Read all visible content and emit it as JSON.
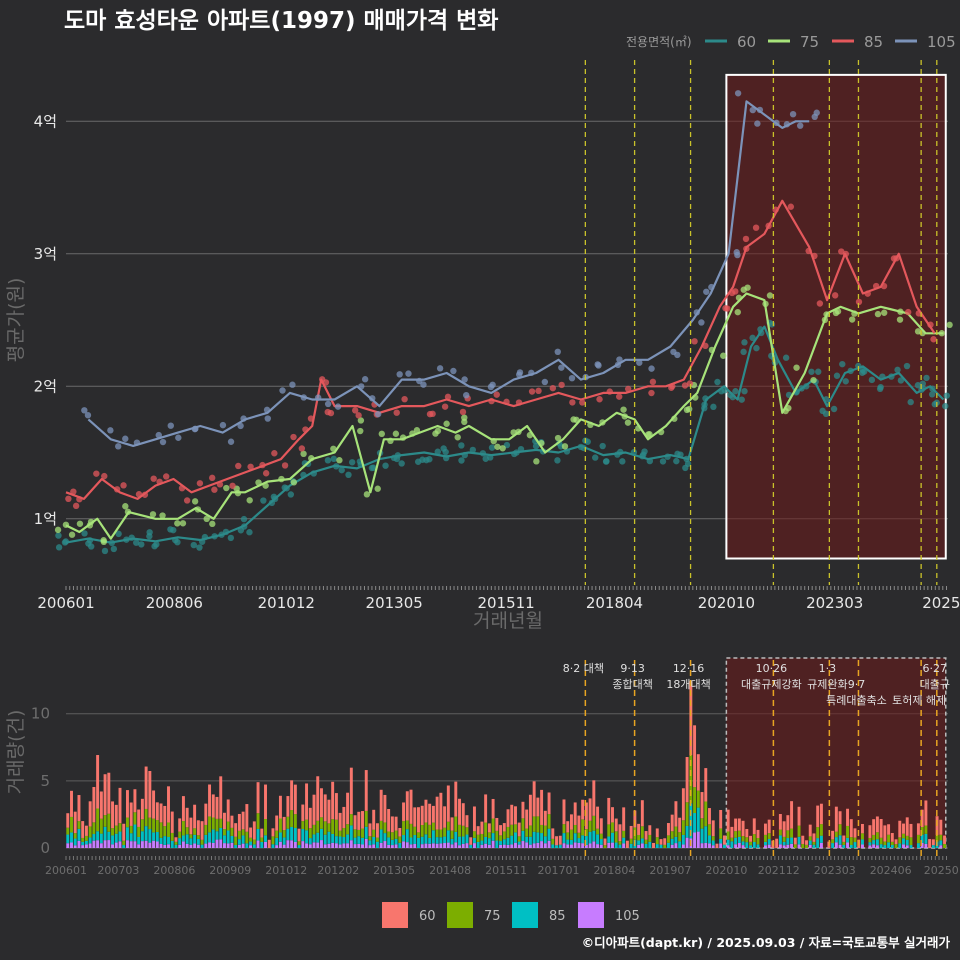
{
  "title": "도마 효성타운 아파트(1997) 매매가격 변화",
  "legend": {
    "title": "전용면적(㎡)",
    "items": [
      {
        "label": "60",
        "color": "#2c8a8a"
      },
      {
        "label": "75",
        "color": "#a7e37a"
      },
      {
        "label": "85",
        "color": "#e4585c"
      },
      {
        "label": "105",
        "color": "#7c93b9"
      }
    ]
  },
  "bar_legend": {
    "items": [
      {
        "label": "60",
        "color": "#f8766d"
      },
      {
        "label": "75",
        "color": "#7cae00"
      },
      {
        "label": "85",
        "color": "#00bfc4"
      },
      {
        "label": "105",
        "color": "#c77cff"
      }
    ]
  },
  "credit": "©디아파트(dapt.kr) / 2025.09.03 / 자료=국토교통부 실거래가",
  "chart_data": [
    {
      "type": "line",
      "ylabel": "평균가(원)",
      "xlabel": "거래년월",
      "yticks": [
        {
          "v": 1,
          "label": "1억"
        },
        {
          "v": 2,
          "label": "2억"
        },
        {
          "v": 3,
          "label": "3억"
        },
        {
          "v": 4,
          "label": "4억"
        }
      ],
      "ylim": [
        0.5,
        4.5
      ],
      "xlim": [
        2006.0,
        2025.7
      ],
      "xticks": [
        {
          "v": 2006.0,
          "label": "200601"
        },
        {
          "v": 2008.42,
          "label": "200806"
        },
        {
          "v": 2010.92,
          "label": "201012"
        },
        {
          "v": 2013.33,
          "label": "201305"
        },
        {
          "v": 2015.83,
          "label": "201511"
        },
        {
          "v": 2018.25,
          "label": "201804"
        },
        {
          "v": 2020.75,
          "label": "202010"
        },
        {
          "v": 2023.17,
          "label": "202303"
        },
        {
          "v": 2025.55,
          "label": "2025"
        }
      ],
      "policy_lines": [
        2017.6,
        2018.7,
        2019.95,
        2021.8,
        2023.05,
        2023.7,
        2025.1,
        2025.45
      ],
      "highlight_box": {
        "x0": 2020.75,
        "x1": 2025.65,
        "y0": 0.7,
        "y1": 4.35
      },
      "series": [
        {
          "name": "60",
          "color": "#2c8a8a",
          "x": [
            2006.0,
            2006.5,
            2007.0,
            2007.5,
            2008.0,
            2008.5,
            2009.0,
            2009.5,
            2010.0,
            2010.5,
            2011.0,
            2011.5,
            2012.0,
            2012.5,
            2013.0,
            2013.5,
            2014.0,
            2014.5,
            2015.0,
            2015.5,
            2016.0,
            2016.5,
            2017.0,
            2017.5,
            2018.0,
            2018.5,
            2019.0,
            2019.5,
            2019.9,
            2020.3,
            2020.7,
            2021.0,
            2021.3,
            2021.6,
            2021.9,
            2022.3,
            2022.7,
            2023.0,
            2023.4,
            2023.8,
            2024.2,
            2024.6,
            2025.0,
            2025.3,
            2025.6
          ],
          "y": [
            0.82,
            0.85,
            0.82,
            0.85,
            0.83,
            0.86,
            0.84,
            0.88,
            0.95,
            1.1,
            1.25,
            1.35,
            1.4,
            1.38,
            1.45,
            1.48,
            1.5,
            1.47,
            1.5,
            1.48,
            1.5,
            1.52,
            1.5,
            1.55,
            1.48,
            1.5,
            1.45,
            1.48,
            1.45,
            1.9,
            2.0,
            1.9,
            2.3,
            2.45,
            2.2,
            1.95,
            2.05,
            1.85,
            2.1,
            2.15,
            2.05,
            2.1,
            1.95,
            2.0,
            1.9
          ]
        },
        {
          "name": "75",
          "color": "#a7e37a",
          "x": [
            2006.0,
            2006.3,
            2006.7,
            2007.0,
            2007.4,
            2008.0,
            2008.5,
            2008.9,
            2009.3,
            2009.7,
            2010.0,
            2010.5,
            2011.0,
            2011.5,
            2012.0,
            2012.4,
            2012.8,
            2013.1,
            2013.5,
            2013.9,
            2014.3,
            2014.7,
            2015.0,
            2015.5,
            2015.9,
            2016.3,
            2016.7,
            2017.1,
            2017.5,
            2017.9,
            2018.3,
            2018.7,
            2019.0,
            2019.4,
            2019.8,
            2020.1,
            2020.5,
            2020.9,
            2021.2,
            2021.6,
            2022.0,
            2022.5,
            2023.0,
            2023.3,
            2023.7,
            2024.2,
            2024.8,
            2025.2,
            2025.6
          ],
          "y": [
            0.95,
            0.9,
            1.0,
            0.85,
            1.05,
            1.0,
            1.0,
            1.08,
            1.0,
            1.2,
            1.2,
            1.28,
            1.3,
            1.45,
            1.5,
            1.7,
            1.2,
            1.6,
            1.6,
            1.65,
            1.7,
            1.65,
            1.7,
            1.6,
            1.6,
            1.7,
            1.5,
            1.6,
            1.75,
            1.7,
            1.8,
            1.75,
            1.6,
            1.7,
            1.85,
            1.95,
            2.3,
            2.6,
            2.7,
            2.65,
            1.8,
            2.1,
            2.55,
            2.6,
            2.55,
            2.6,
            2.55,
            2.4,
            2.4
          ]
        },
        {
          "name": "85",
          "color": "#e4585c",
          "x": [
            2006.0,
            2006.4,
            2006.8,
            2007.2,
            2007.6,
            2008.0,
            2008.4,
            2008.8,
            2009.2,
            2009.6,
            2010.0,
            2010.4,
            2010.8,
            2011.2,
            2011.5,
            2011.7,
            2012.0,
            2012.5,
            2013.0,
            2013.5,
            2014.0,
            2014.5,
            2015.0,
            2015.5,
            2016.0,
            2016.5,
            2017.0,
            2017.5,
            2018.0,
            2018.5,
            2019.0,
            2019.4,
            2019.8,
            2020.2,
            2020.6,
            2020.9,
            2021.2,
            2021.6,
            2022.0,
            2022.6,
            2023.0,
            2023.4,
            2023.8,
            2024.2,
            2024.6,
            2025.0,
            2025.4
          ],
          "y": [
            1.2,
            1.15,
            1.3,
            1.2,
            1.15,
            1.25,
            1.3,
            1.2,
            1.25,
            1.3,
            1.35,
            1.4,
            1.45,
            1.6,
            1.7,
            2.05,
            1.85,
            1.85,
            1.8,
            1.85,
            1.85,
            1.9,
            1.85,
            1.9,
            1.85,
            1.9,
            1.95,
            1.9,
            1.95,
            1.95,
            2.0,
            2.0,
            2.05,
            2.3,
            2.6,
            2.75,
            3.05,
            3.15,
            3.4,
            3.05,
            2.65,
            3.0,
            2.7,
            2.75,
            3.0,
            2.6,
            2.4
          ]
        },
        {
          "name": "105",
          "color": "#7c93b9",
          "x": [
            2006.5,
            2007.0,
            2007.5,
            2008.0,
            2008.5,
            2009.0,
            2009.5,
            2010.0,
            2010.5,
            2011.0,
            2011.5,
            2012.0,
            2012.5,
            2013.0,
            2013.5,
            2014.0,
            2014.5,
            2015.0,
            2015.5,
            2016.0,
            2016.5,
            2017.0,
            2017.5,
            2018.0,
            2018.5,
            2019.0,
            2019.5,
            2020.0,
            2020.4,
            2020.8,
            2021.2,
            2021.6,
            2022.0,
            2022.3,
            2022.6
          ],
          "y": [
            1.75,
            1.6,
            1.55,
            1.6,
            1.65,
            1.7,
            1.65,
            1.75,
            1.8,
            1.95,
            1.9,
            1.9,
            2.0,
            1.85,
            2.05,
            2.05,
            2.1,
            2.0,
            1.95,
            2.05,
            2.1,
            2.2,
            2.05,
            2.1,
            2.2,
            2.2,
            2.3,
            2.5,
            2.7,
            3.0,
            4.15,
            4.05,
            3.95,
            4.0,
            4.0
          ]
        }
      ]
    },
    {
      "type": "bar",
      "ylabel": "거래량(건)",
      "yticks": [
        0,
        5,
        10
      ],
      "ylim": [
        0,
        14
      ],
      "xticks": [
        {
          "v": 2006.0,
          "label": "200601"
        },
        {
          "v": 2007.17,
          "label": "200703"
        },
        {
          "v": 2008.42,
          "label": "200806"
        },
        {
          "v": 2009.67,
          "label": "200909"
        },
        {
          "v": 2010.92,
          "label": "201012"
        },
        {
          "v": 2012.08,
          "label": "201202"
        },
        {
          "v": 2013.33,
          "label": "201305"
        },
        {
          "v": 2014.58,
          "label": "201408"
        },
        {
          "v": 2015.83,
          "label": "201511"
        },
        {
          "v": 2017.0,
          "label": "201701"
        },
        {
          "v": 2018.25,
          "label": "201804"
        },
        {
          "v": 2019.5,
          "label": "201907"
        },
        {
          "v": 2020.75,
          "label": "202010"
        },
        {
          "v": 2021.92,
          "label": "202112"
        },
        {
          "v": 2023.17,
          "label": "202303"
        },
        {
          "v": 2024.42,
          "label": "202406"
        },
        {
          "v": 2025.55,
          "label": "20250"
        }
      ],
      "policy_annotations": [
        {
          "x": 2017.6,
          "lines": [
            "8·2 대책"
          ]
        },
        {
          "x": 2018.7,
          "lines": [
            "9·13",
            "종합대책"
          ]
        },
        {
          "x": 2019.95,
          "lines": [
            "12·16",
            "18개대책"
          ]
        },
        {
          "x": 2021.8,
          "lines": [
            "10·26",
            "대출규제강화"
          ]
        },
        {
          "x": 2023.05,
          "lines": [
            "1·3",
            "규제완화"
          ]
        },
        {
          "x": 2023.7,
          "lines": [
            "",
            "9·7",
            "특례대출축소"
          ]
        },
        {
          "x": 2025.1,
          "lines": [
            "",
            "",
            "토허제 해제"
          ]
        },
        {
          "x": 2025.45,
          "lines": [
            "6·27",
            "대출규"
          ]
        }
      ],
      "highlight_box": {
        "x0": 2020.75,
        "x1": 2025.65
      },
      "volume_profile": [
        4,
        3,
        3,
        3,
        4,
        5,
        4,
        5,
        4,
        4,
        3,
        5,
        6,
        5,
        4,
        4,
        3,
        5,
        4,
        3,
        2,
        3,
        2,
        3,
        3,
        3,
        3,
        4,
        5,
        4,
        4,
        3,
        3,
        2,
        3,
        3,
        3,
        2,
        3,
        3,
        3,
        4,
        4,
        3,
        3,
        4,
        5,
        5,
        4,
        4,
        3,
        4,
        4,
        3,
        4,
        4,
        3,
        3,
        3,
        3,
        3,
        3,
        4,
        4,
        3,
        3,
        4,
        4,
        3,
        3,
        3,
        2,
        3,
        3,
        3,
        2,
        3,
        3,
        2,
        3,
        2,
        3,
        3,
        3,
        3,
        3,
        3,
        3,
        3,
        3,
        3,
        2,
        3,
        3,
        3,
        3,
        4,
        5,
        4,
        3,
        2,
        3,
        3,
        2,
        2,
        2,
        2,
        2,
        2,
        2,
        2,
        2,
        2,
        2,
        3,
        8,
        13,
        9,
        6,
        3,
        2,
        2,
        2,
        2,
        2,
        2,
        1,
        2,
        1,
        1,
        2,
        2,
        2,
        1,
        2,
        2,
        2,
        1,
        1,
        2,
        2,
        1,
        2,
        2,
        1,
        2,
        2,
        2,
        1,
        1,
        2,
        2,
        2,
        1,
        2,
        2,
        1,
        1,
        2,
        2,
        2,
        2,
        3,
        2
      ]
    }
  ]
}
